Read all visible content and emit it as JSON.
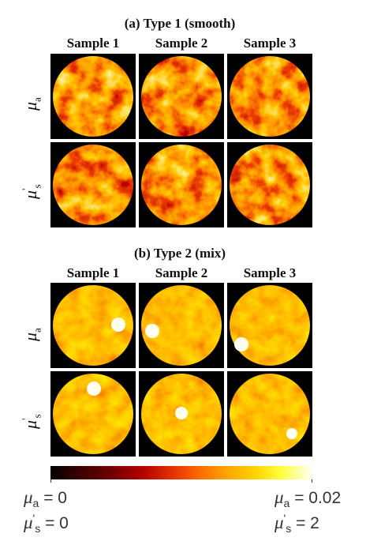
{
  "sections": [
    {
      "title": "(a) Type 1 (smooth)",
      "columns": [
        "Sample 1",
        "Sample 2",
        "Sample 3"
      ]
    },
    {
      "title": "(b) Type 2 (mix)",
      "columns": [
        "Sample 1",
        "Sample 2",
        "Sample 3"
      ]
    }
  ],
  "row_labels": {
    "mu_a": {
      "symbol": "μ",
      "sub": "a"
    },
    "mu_s": {
      "symbol": "μ",
      "prime": "'",
      "sub": "s"
    }
  },
  "colormap": {
    "name": "hot",
    "stops": [
      "#000000",
      "#6a0000",
      "#e83200",
      "#ff8c00",
      "#ffd200",
      "#fffff8"
    ]
  },
  "colorbar_labels": {
    "left": {
      "mu_a": "= 0",
      "mu_s": "= 0"
    },
    "right": {
      "mu_a": "= 0.02",
      "mu_s": "= 2"
    }
  },
  "maps": {
    "type1_mu_a": [
      "s1",
      "s2",
      "s3"
    ],
    "type1_mu_s": [
      "s1",
      "s2",
      "s3"
    ],
    "type2_mu_a": [
      "s1",
      "s2",
      "s3"
    ],
    "type2_mu_s": [
      "s1",
      "s2",
      "s3"
    ]
  }
}
